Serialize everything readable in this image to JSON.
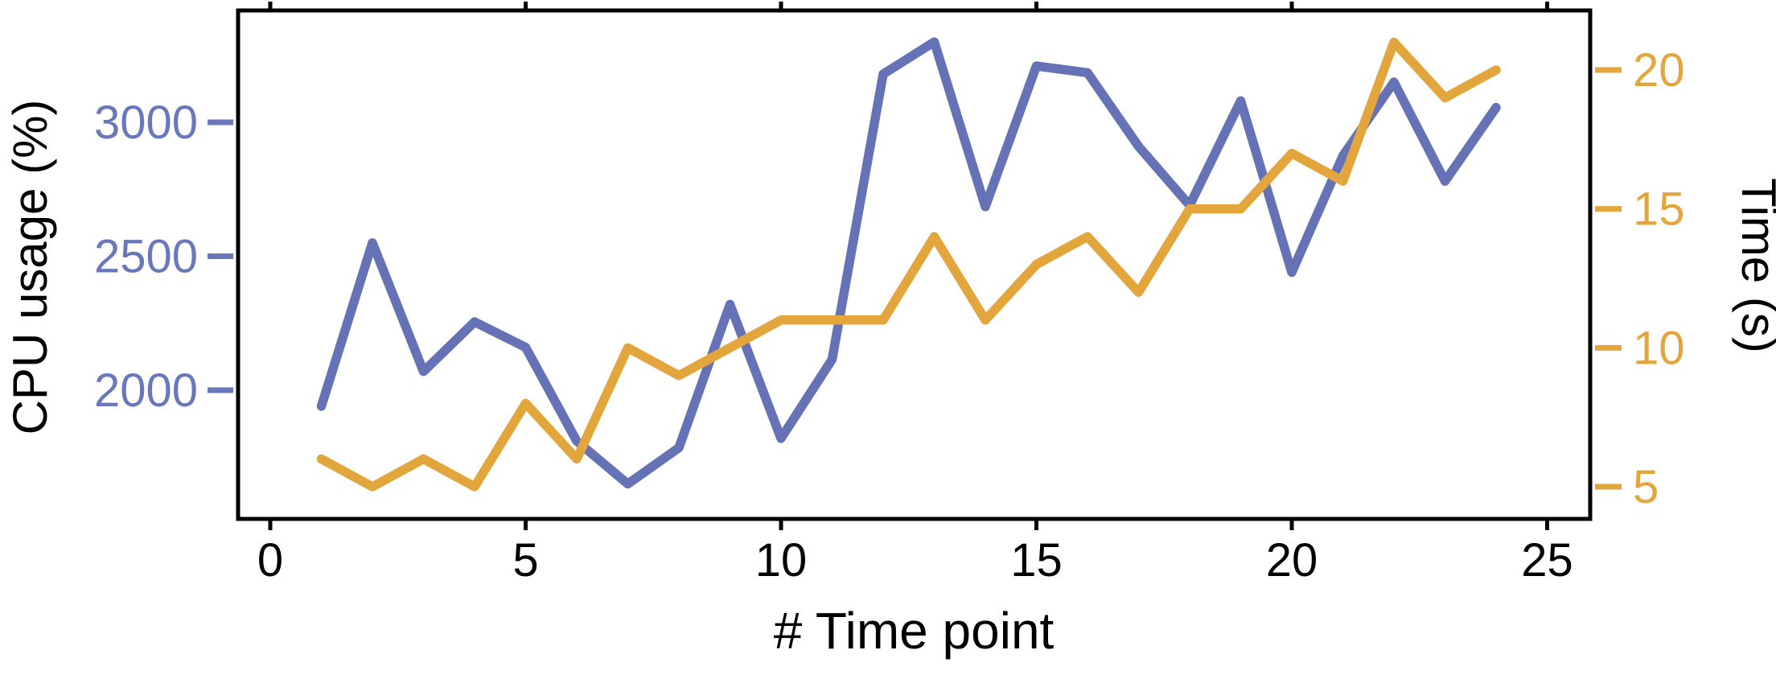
{
  "chart_data": {
    "type": "line",
    "title": "",
    "xlabel": "# Time point",
    "x_ticks": [
      0,
      5,
      10,
      15,
      20,
      25
    ],
    "x_range": [
      -0.65,
      25.6
    ],
    "x": [
      1,
      2,
      3,
      4,
      5,
      6,
      7,
      8,
      9,
      10,
      11,
      12,
      13,
      14,
      15,
      16,
      17,
      18,
      19,
      20,
      21,
      22,
      23,
      24
    ],
    "series": [
      {
        "name": "CPU usage (%)",
        "axis": "left",
        "color": "#6573b6",
        "values": [
          1940,
          2550,
          2070,
          2255,
          2160,
          1810,
          1650,
          1785,
          2320,
          1820,
          2115,
          3180,
          3300,
          2685,
          3210,
          3185,
          2910,
          2690,
          3080,
          2440,
          2875,
          3150,
          2780,
          3055
        ]
      },
      {
        "name": "Time (s)",
        "axis": "right",
        "color": "#e3a63c",
        "values": [
          6,
          5,
          6,
          5,
          8,
          6,
          10,
          9,
          10,
          11,
          11,
          11,
          14,
          11,
          13,
          14,
          12,
          15,
          15,
          17,
          16,
          21,
          19,
          20
        ]
      }
    ],
    "left_axis": {
      "label": "CPU usage (%)",
      "ticks": [
        2000,
        2500,
        3000
      ],
      "tick_labels": [
        "2000",
        "2500",
        "3000"
      ],
      "color": "#6978bb",
      "range": [
        1512,
        3417
      ]
    },
    "right_axis": {
      "label": "Time (s)",
      "ticks": [
        5,
        10,
        15,
        20
      ],
      "tick_labels": [
        "5",
        "10",
        "15",
        "20"
      ],
      "color": "#e3a63c",
      "range": [
        3.8,
        22.1
      ]
    },
    "grid": false,
    "legend": "none",
    "frame_color": "#000000",
    "background": "#ffffff"
  }
}
